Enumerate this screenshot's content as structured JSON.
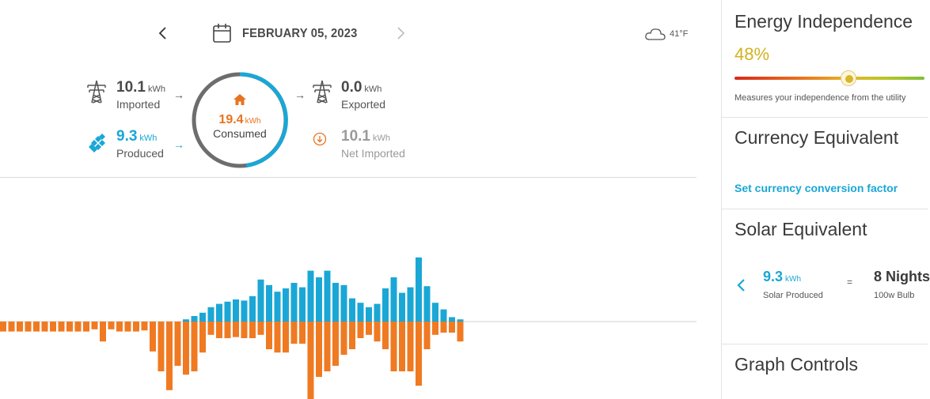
{
  "header": {
    "date": "FEBRUARY 05, 2023",
    "weather_temp": "41°F"
  },
  "flow": {
    "imported": {
      "value": "10.1",
      "unit": "kWh",
      "label": "Imported"
    },
    "produced": {
      "value": "9.3",
      "unit": "kWh",
      "label": "Produced"
    },
    "consumed": {
      "value": "19.4",
      "unit": "kWh",
      "label": "Consumed"
    },
    "exported": {
      "value": "0.0",
      "unit": "kWh",
      "label": "Exported"
    },
    "net_imported": {
      "value": "10.1",
      "unit": "kWh",
      "label": "Net Imported"
    }
  },
  "colors": {
    "solar": "#1aa7d6",
    "consumption": "#ef7a22",
    "independence": "#d4b21f"
  },
  "icons": {
    "prev": "chevron-left-icon",
    "next": "chevron-right-icon",
    "calendar": "calendar-icon",
    "weather": "cloud-icon",
    "grid": "power-tower-icon",
    "solar": "solar-panel-icon",
    "home": "home-icon",
    "net": "arrow-down-circle-icon"
  },
  "sidebar": {
    "energy_independence": {
      "title": "Energy Independence",
      "percent": "48%",
      "level": 0.48,
      "description": "Measures your independence from the utility"
    },
    "currency": {
      "title": "Currency Equivalent",
      "link": "Set currency conversion factor"
    },
    "solar_equivalent": {
      "title": "Solar Equivalent",
      "value": "9.3",
      "unit": "kWh",
      "label": "Solar Produced",
      "equals": "=",
      "right_value": "8 Nights",
      "right_label": "100w Bulb"
    },
    "graph_controls": {
      "title": "Graph Controls"
    }
  },
  "chart_data": {
    "type": "bar",
    "series": [
      {
        "name": "Produced",
        "color": "#1aa7d6",
        "values": [
          0,
          0,
          0,
          0,
          0,
          0,
          0,
          0,
          0,
          0,
          0,
          0,
          0,
          0,
          0,
          0,
          0,
          0,
          0,
          0,
          0,
          0,
          0.02,
          0.05,
          0.08,
          0.13,
          0.16,
          0.18,
          0.2,
          0.19,
          0.23,
          0.38,
          0.33,
          0.27,
          0.3,
          0.35,
          0.31,
          0.46,
          0.4,
          0.46,
          0.35,
          0.33,
          0.21,
          0.17,
          0.13,
          0.16,
          0.3,
          0.4,
          0.26,
          0.31,
          0.58,
          0.32,
          0.17,
          0.11,
          0.04,
          0.02
        ]
      },
      {
        "name": "Consumed",
        "color": "#ef7a22",
        "values": [
          -0.09,
          -0.09,
          -0.09,
          -0.09,
          -0.09,
          -0.09,
          -0.09,
          -0.09,
          -0.09,
          -0.09,
          -0.09,
          -0.07,
          -0.18,
          -0.07,
          -0.09,
          -0.09,
          -0.09,
          -0.08,
          -0.27,
          -0.45,
          -0.62,
          -0.4,
          -0.48,
          -0.45,
          -0.28,
          -0.12,
          -0.15,
          -0.15,
          -0.14,
          -0.15,
          -0.15,
          -0.12,
          -0.25,
          -0.28,
          -0.28,
          -0.2,
          -0.2,
          -0.75,
          -0.5,
          -0.45,
          -0.4,
          -0.3,
          -0.25,
          -0.15,
          -0.12,
          -0.18,
          -0.25,
          -0.45,
          -0.45,
          -0.45,
          -0.58,
          -0.25,
          -0.12,
          -0.1,
          -0.1,
          -0.18
        ]
      }
    ],
    "ylim": [
      -0.8,
      0.7
    ],
    "grid": false
  }
}
